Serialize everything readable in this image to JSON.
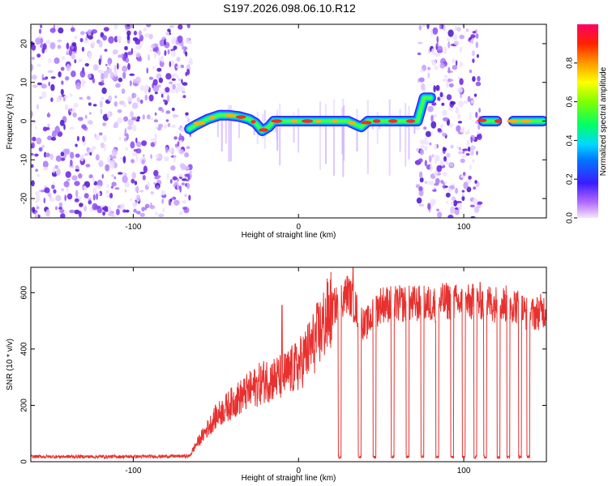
{
  "title": "S197.2026.098.06.10.R12",
  "colors": {
    "snr_line": "#e8312f",
    "speckle": "#8a3cf0",
    "axis": "#000000"
  },
  "chart_data": [
    {
      "type": "heatmap",
      "xlabel": "Height of straight line (km)",
      "ylabel": "Frequency (Hz)",
      "xlim": [
        -162,
        150
      ],
      "ylim": [
        -25,
        25
      ],
      "xticks": [
        -100,
        0,
        100
      ],
      "yticks": [
        -20,
        -10,
        0,
        10,
        20
      ],
      "colorbar": {
        "label": "Normalized spectral amplitude",
        "range": [
          0.0,
          1.0
        ],
        "ticks": [
          0.0,
          0.2,
          0.4,
          0.6,
          0.8
        ],
        "colormap": "rainbow (magenta/violet low to red high)"
      },
      "noise_regions_km": [
        [
          -162,
          -65
        ],
        [
          72,
          110
        ]
      ],
      "ridge": {
        "x": [
          -66,
          -62,
          -55,
          -48,
          -42,
          -36,
          -30,
          -26,
          -22,
          -18,
          -15,
          -10,
          0,
          10,
          20,
          30,
          35,
          38,
          42,
          50,
          60,
          70,
          72,
          76,
          80,
          112,
          120,
          130,
          140,
          148
        ],
        "y": [
          -2,
          -1,
          0.5,
          1.5,
          1.5,
          1.2,
          0.5,
          -0.5,
          -2.5,
          -1.5,
          0,
          0,
          0,
          0,
          0,
          0,
          -1,
          -1.5,
          0,
          0,
          0,
          0,
          0,
          6,
          6,
          0,
          0,
          0,
          0,
          0
        ]
      }
    },
    {
      "type": "line",
      "xlabel": "Height of straight line (km)",
      "ylabel": "SNR (10 * v/v)",
      "xlim": [
        -162,
        150
      ],
      "ylim": [
        0,
        690
      ],
      "xticks": [
        -100,
        0,
        100
      ],
      "yticks": [
        0,
        200,
        400,
        600
      ],
      "envelope": {
        "x": [
          -162,
          -100,
          -66,
          -62,
          -50,
          -40,
          -30,
          -20,
          -10,
          0,
          10,
          20,
          30,
          40,
          50,
          60,
          70,
          80,
          90,
          100,
          110,
          120,
          130,
          140,
          150
        ],
        "y": [
          18,
          18,
          20,
          60,
          160,
          210,
          250,
          290,
          300,
          340,
          430,
          540,
          600,
          480,
          560,
          560,
          560,
          560,
          570,
          560,
          570,
          560,
          560,
          520,
          540
        ]
      },
      "dropouts_km": [
        25,
        37,
        46,
        57,
        66,
        75,
        84,
        93,
        100,
        107,
        113,
        121,
        127,
        134,
        139
      ],
      "spikes": [
        {
          "x": -10,
          "y": 555
        },
        {
          "x": 33,
          "y": 690
        }
      ],
      "series": [
        {
          "values_ref": "envelope"
        }
      ]
    }
  ]
}
